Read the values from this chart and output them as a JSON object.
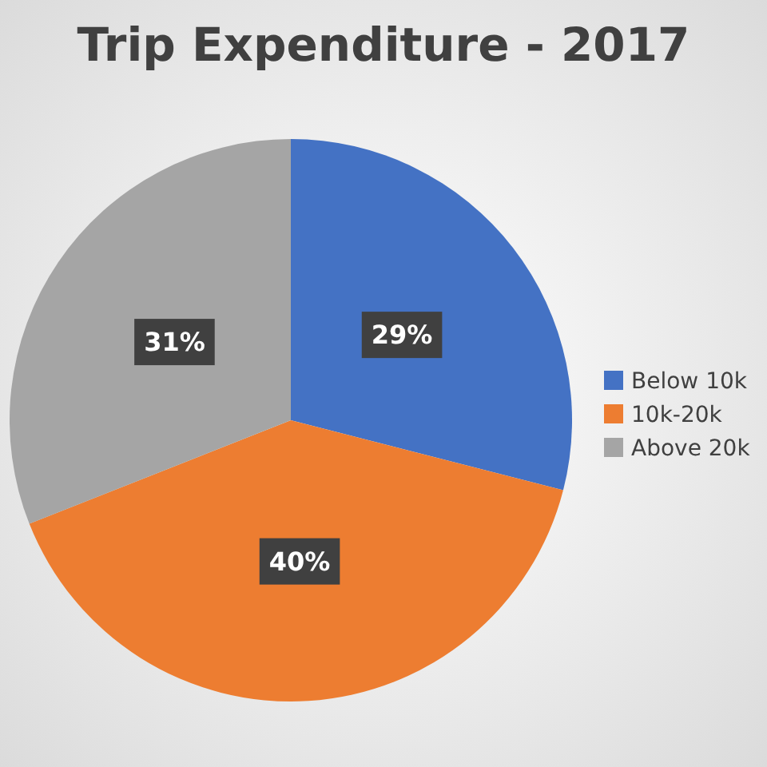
{
  "chart_data": {
    "type": "pie",
    "title": "Trip Expenditure - 2017",
    "categories": [
      "Below 10k",
      "10k-20k",
      "Above 20k"
    ],
    "values": [
      29,
      40,
      31
    ],
    "colors": [
      "#4472c4",
      "#ed7d31",
      "#a5a5a5"
    ],
    "value_labels": [
      "29%",
      "40%",
      "31%"
    ],
    "legend": "right"
  }
}
